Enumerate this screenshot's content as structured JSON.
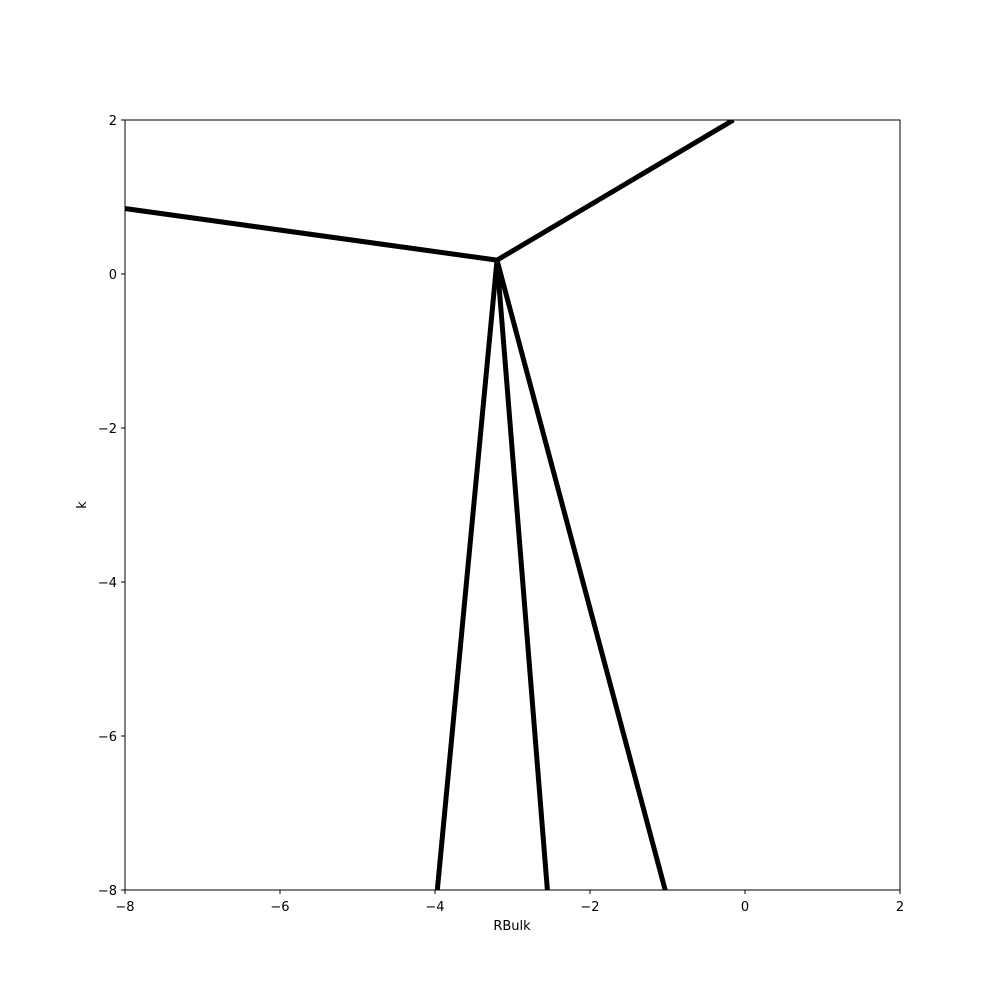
{
  "chart_data": {
    "type": "line",
    "title": "",
    "xlabel": "RBulk",
    "ylabel": "k",
    "xlim": [
      -8,
      2
    ],
    "ylim": [
      -8,
      2
    ],
    "xticks": [
      -8,
      -6,
      -4,
      -2,
      0,
      2
    ],
    "yticks": [
      -8,
      -6,
      -4,
      -2,
      0,
      2
    ],
    "xtick_labels": [
      "−8",
      "−6",
      "−4",
      "−2",
      "0",
      "2"
    ],
    "ytick_labels": [
      "−8",
      "−6",
      "−4",
      "−2",
      "0",
      "2"
    ],
    "grid": false,
    "line_color": "#000000",
    "series": [
      {
        "x": [
          -8.0,
          -3.2
        ],
        "y": [
          0.85,
          0.18
        ]
      },
      {
        "x": [
          -3.2,
          -0.15
        ],
        "y": [
          0.18,
          2.0
        ]
      },
      {
        "x": [
          -3.2,
          -3.97
        ],
        "y": [
          0.18,
          -8.0
        ]
      },
      {
        "x": [
          -3.2,
          -2.55
        ],
        "y": [
          0.18,
          -8.0
        ]
      },
      {
        "x": [
          -3.2,
          -1.03
        ],
        "y": [
          0.18,
          -8.0
        ]
      }
    ]
  }
}
